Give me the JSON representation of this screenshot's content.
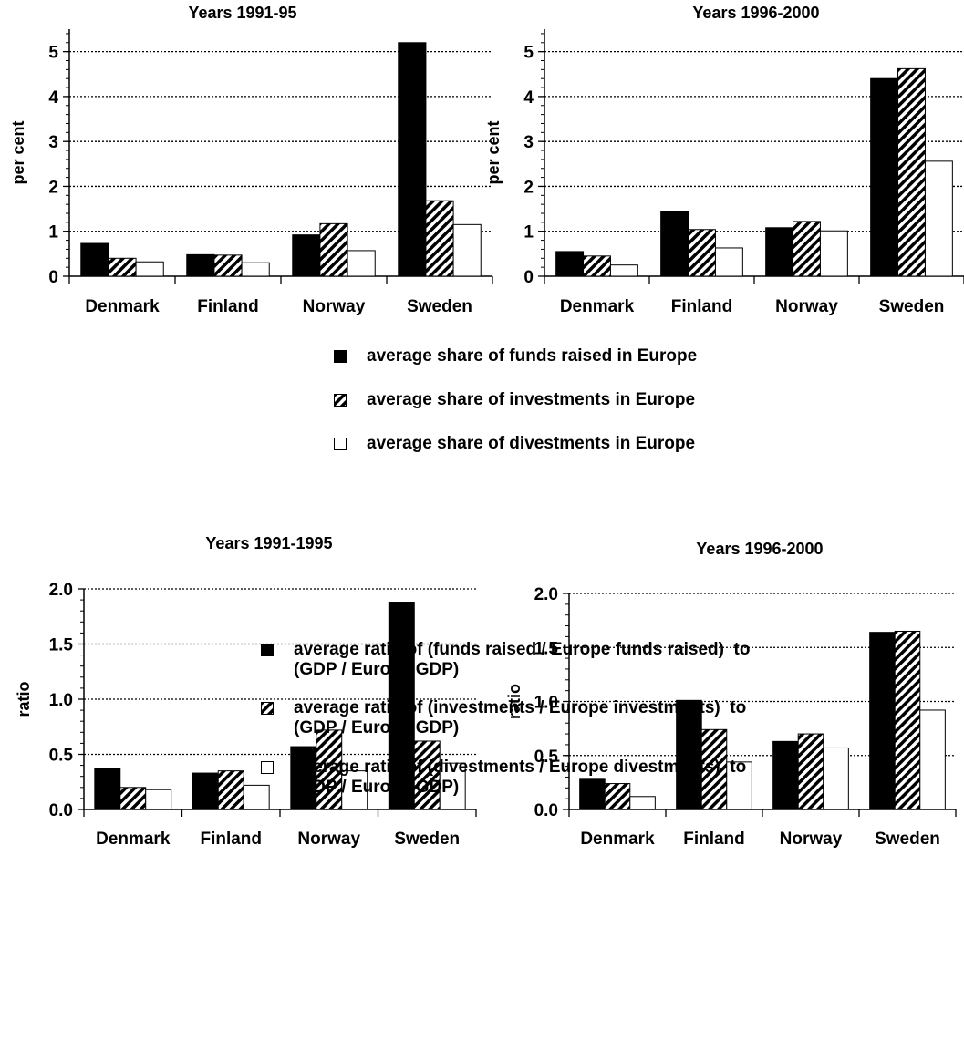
{
  "colors": {
    "funds": "#000000",
    "investments": "hatch",
    "divestments": "#ffffff",
    "grid": "#000000"
  },
  "legend_top": [
    {
      "key": "funds",
      "label": "average share of funds raised in Europe"
    },
    {
      "key": "investments",
      "label": "average share of investments in Europe"
    },
    {
      "key": "divestments",
      "label": "average share of divestments in Europe"
    }
  ],
  "legend_bottom": [
    {
      "key": "funds",
      "line1": "average ratio of (funds raised / Europe funds raised)  to",
      "line2": "(GDP / Europe GDP)"
    },
    {
      "key": "investments",
      "line1": "average ratio of (investments / Europe investments)  to",
      "line2": "(GDP / Europe GDP)"
    },
    {
      "key": "divestments",
      "line1": "average ratio of (divestments / Europe divestments)  to",
      "line2": "(GDP / Europe GDP)"
    }
  ],
  "chart_data": [
    {
      "type": "bar",
      "title": "Years 1991-95",
      "ylabel": "per cent",
      "categories": [
        "Denmark",
        "Finland",
        "Norway",
        "Sweden"
      ],
      "ylim": [
        0,
        5.5
      ],
      "yticks": [
        "0",
        "1",
        "2",
        "3",
        "4",
        "5"
      ],
      "ytick_values": [
        0,
        1,
        2,
        3,
        4,
        5
      ],
      "grid": "dotted horizontal",
      "series": [
        {
          "key": "funds",
          "values": [
            0.73,
            0.48,
            0.92,
            5.2
          ]
        },
        {
          "key": "investments",
          "values": [
            0.4,
            0.47,
            1.17,
            1.68
          ]
        },
        {
          "key": "divestments",
          "values": [
            0.32,
            0.3,
            0.57,
            1.15
          ]
        }
      ]
    },
    {
      "type": "bar",
      "title": "Years 1996-2000",
      "ylabel": "per cent",
      "categories": [
        "Denmark",
        "Finland",
        "Norway",
        "Sweden"
      ],
      "ylim": [
        0,
        5.5
      ],
      "yticks": [
        "0",
        "1",
        "2",
        "3",
        "4",
        "5"
      ],
      "ytick_values": [
        0,
        1,
        2,
        3,
        4,
        5
      ],
      "grid": "dotted horizontal",
      "series": [
        {
          "key": "funds",
          "values": [
            0.55,
            1.45,
            1.08,
            4.4
          ]
        },
        {
          "key": "investments",
          "values": [
            0.45,
            1.04,
            1.22,
            4.62
          ]
        },
        {
          "key": "divestments",
          "values": [
            0.25,
            0.63,
            1.01,
            2.56
          ]
        }
      ]
    },
    {
      "type": "bar",
      "title": "Years 1991-1995",
      "ylabel": "ratio",
      "categories": [
        "Denmark",
        "Finland",
        "Norway",
        "Sweden"
      ],
      "ylim": [
        0,
        2.0
      ],
      "yticks": [
        "0.0",
        "0.5",
        "1.0",
        "1.5",
        "2.0"
      ],
      "ytick_values": [
        0,
        0.5,
        1.0,
        1.5,
        2.0
      ],
      "grid": "dotted horizontal",
      "series": [
        {
          "key": "funds",
          "values": [
            0.37,
            0.33,
            0.57,
            1.88
          ]
        },
        {
          "key": "investments",
          "values": [
            0.2,
            0.35,
            0.72,
            0.62
          ]
        },
        {
          "key": "divestments",
          "values": [
            0.18,
            0.22,
            0.35,
            0.42
          ]
        }
      ]
    },
    {
      "type": "bar",
      "title": "Years 1996-2000",
      "ylabel": "ratio",
      "categories": [
        "Denmark",
        "Finland",
        "Norway",
        "Sweden"
      ],
      "ylim": [
        0,
        2.0
      ],
      "yticks": [
        "0.0",
        "0.5",
        "1.0",
        "1.5",
        "2.0"
      ],
      "ytick_values": [
        0,
        0.5,
        1.0,
        1.5,
        2.0
      ],
      "grid": "dotted horizontal",
      "series": [
        {
          "key": "funds",
          "values": [
            0.28,
            1.01,
            0.63,
            1.64
          ]
        },
        {
          "key": "investments",
          "values": [
            0.24,
            0.74,
            0.7,
            1.65
          ]
        },
        {
          "key": "divestments",
          "values": [
            0.12,
            0.44,
            0.57,
            0.92
          ]
        }
      ]
    }
  ]
}
